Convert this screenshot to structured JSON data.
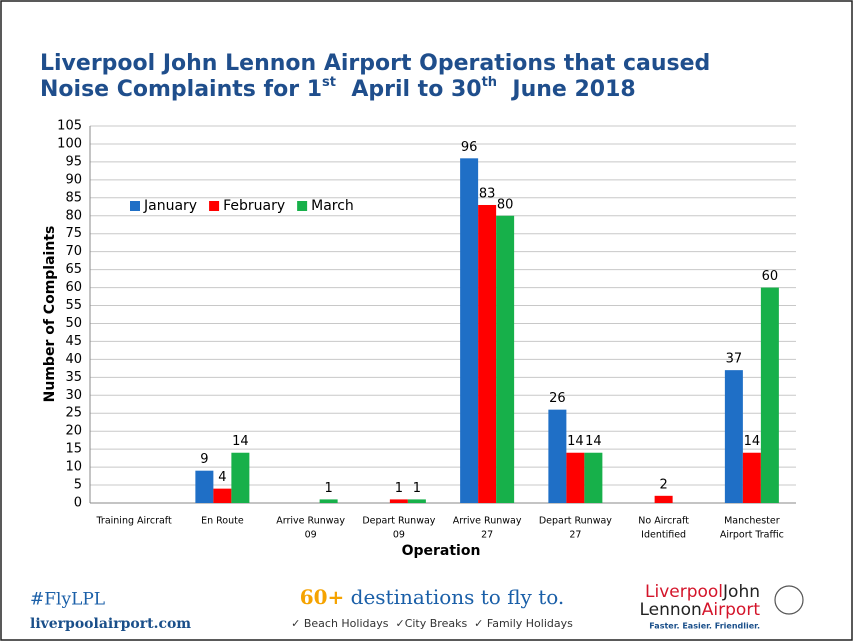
{
  "chart_data": {
    "type": "bar",
    "title": {
      "line1": "Liverpool John Lennon Airport Operations that caused",
      "line2": [
        "Noise Complaints for 1",
        "st",
        "  April to 30",
        "th",
        "  June 2018"
      ]
    },
    "xlabel": "Operation",
    "ylabel": "Number of Complaints",
    "categories": [
      [
        "Training Aircraft"
      ],
      [
        "En Route"
      ],
      [
        "Arrive Runway",
        "09"
      ],
      [
        "Depart Runway",
        "09"
      ],
      [
        "Arrive Runway",
        "27"
      ],
      [
        "Depart Runway",
        "27"
      ],
      [
        "No Aircraft",
        "Identified"
      ],
      [
        "Manchester",
        "Airport Traffic"
      ]
    ],
    "series": [
      {
        "name": "January",
        "color": "#1f6fc6",
        "values": [
          null,
          9,
          null,
          null,
          96,
          26,
          null,
          37
        ]
      },
      {
        "name": "February",
        "color": "#ff0000",
        "values": [
          null,
          4,
          null,
          1,
          83,
          14,
          2,
          14
        ]
      },
      {
        "name": "March",
        "color": "#17b04a",
        "values": [
          null,
          14,
          1,
          1,
          80,
          14,
          null,
          60
        ]
      }
    ],
    "ylim": [
      0,
      105
    ],
    "yticks": [
      0,
      5,
      10,
      15,
      20,
      25,
      30,
      35,
      40,
      45,
      50,
      55,
      60,
      65,
      70,
      75,
      80,
      85,
      90,
      95,
      100,
      105
    ],
    "grid": true,
    "legend": "upper left"
  },
  "footer": {
    "hashtag": "#FlyLPL",
    "site": "liverpoolairport.com",
    "promo": [
      "60+",
      " destinations to fly to."
    ],
    "promo_sub": "✓ Beach Holidays  ✓City Breaks  ✓ Family Holidays",
    "logo": [
      [
        "Liverpool",
        "John"
      ],
      [
        "Lennon",
        "Airport"
      ]
    ],
    "tagline": "Faster. Easier. Friendlier."
  }
}
